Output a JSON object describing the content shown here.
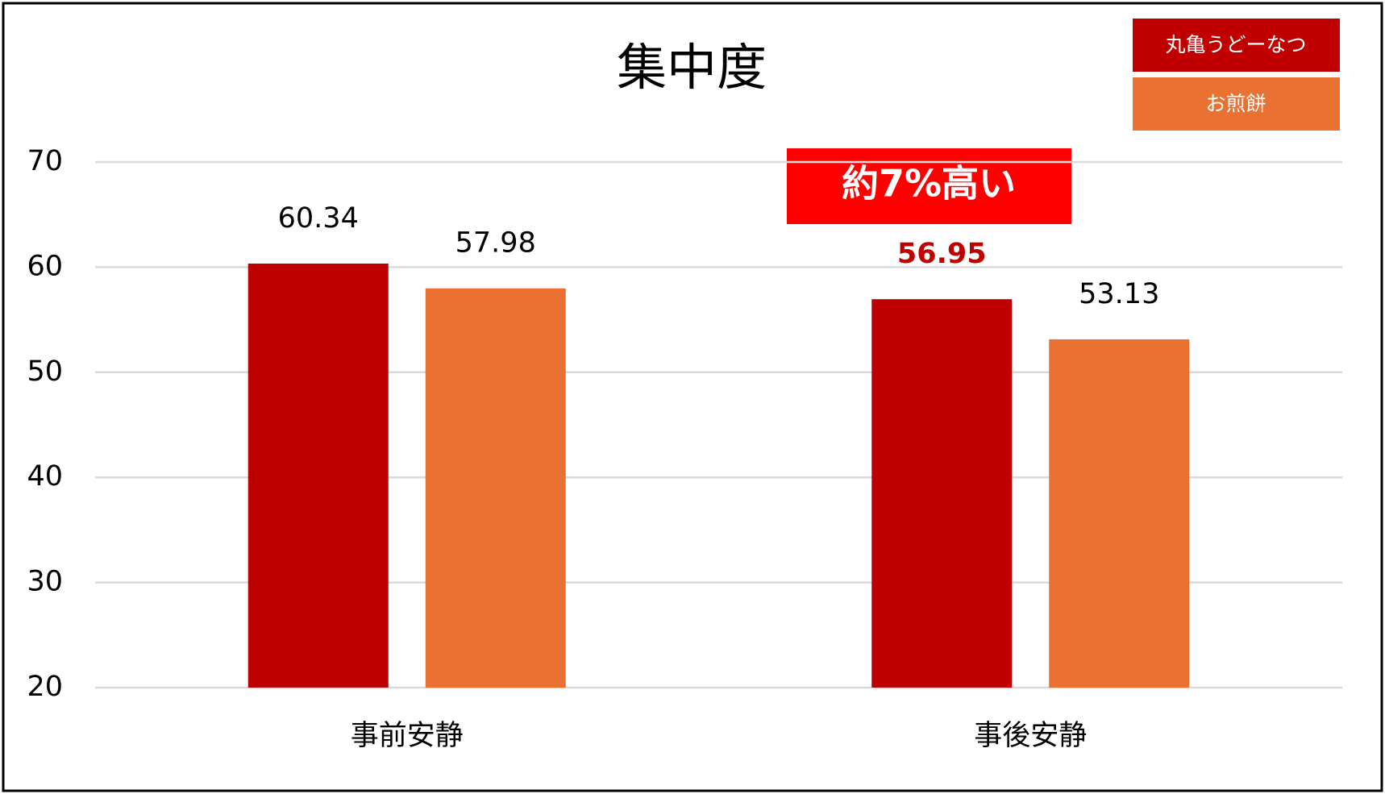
{
  "chart_data": {
    "type": "bar",
    "title": "集中度",
    "categories": [
      "事前安静",
      "事後安静"
    ],
    "series": [
      {
        "name": "丸亀うどーなつ",
        "color": "#c00000",
        "values": [
          60.34,
          56.95
        ]
      },
      {
        "name": "お煎餅",
        "color": "#e97132",
        "values": [
          57.98,
          53.13
        ]
      }
    ],
    "ylim": [
      20,
      70
    ],
    "yticks": [
      20,
      30,
      40,
      50,
      60,
      70
    ],
    "grid": true,
    "annotation": "約7%高い",
    "legend": "top-right"
  }
}
